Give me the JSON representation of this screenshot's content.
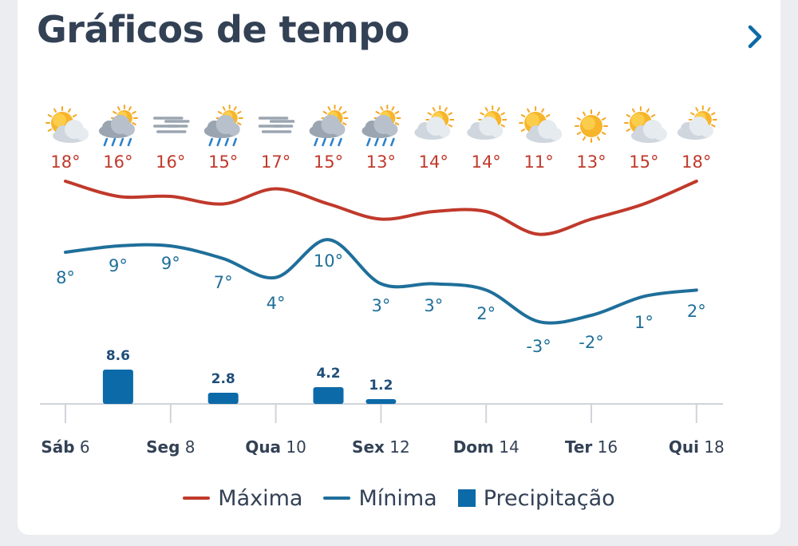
{
  "header": {
    "title": "Gráficos de tempo",
    "next_icon": "chevron-right-icon"
  },
  "colors": {
    "max": "#c0392b",
    "min": "#1f6f9a",
    "precip": "#0d6aa8",
    "text": "#334155",
    "axis": "#d0d4d9"
  },
  "days": [
    {
      "icon": "partly-sunny-icon",
      "max": "18°",
      "min": "8°"
    },
    {
      "icon": "sun-cloud-rain-icon",
      "max": "16°",
      "min": "9°"
    },
    {
      "icon": "fog-icon",
      "max": "16°",
      "min": "9°"
    },
    {
      "icon": "sun-cloud-rain-icon",
      "max": "15°",
      "min": "7°"
    },
    {
      "icon": "fog-icon",
      "max": "17°",
      "min": "4°"
    },
    {
      "icon": "sun-cloud-rain-icon",
      "max": "15°",
      "min": "10°"
    },
    {
      "icon": "sun-cloud-rain-icon",
      "max": "13°",
      "min": "3°"
    },
    {
      "icon": "partly-cloudy-icon",
      "max": "14°",
      "min": "3°"
    },
    {
      "icon": "partly-cloudy-icon",
      "max": "14°",
      "min": "2°"
    },
    {
      "icon": "partly-sunny-icon",
      "max": "11°",
      "min": "-3°"
    },
    {
      "icon": "sun-icon",
      "max": "13°",
      "min": "-2°"
    },
    {
      "icon": "partly-sunny-icon",
      "max": "15°",
      "min": "1°"
    },
    {
      "icon": "partly-cloudy-icon",
      "max": "18°",
      "min": "2°"
    }
  ],
  "chart_data": {
    "type": "line",
    "x_ticks": [
      {
        "index": 0,
        "dow": "Sáb",
        "day": "6"
      },
      {
        "index": 2,
        "dow": "Seg",
        "day": "8"
      },
      {
        "index": 4,
        "dow": "Qua",
        "day": "10"
      },
      {
        "index": 6,
        "dow": "Sex",
        "day": "12"
      },
      {
        "index": 8,
        "dow": "Dom",
        "day": "14"
      },
      {
        "index": 10,
        "dow": "Ter",
        "day": "16"
      },
      {
        "index": 12,
        "dow": "Qui",
        "day": "18"
      }
    ],
    "series": [
      {
        "name": "Máxima",
        "values": [
          18,
          16,
          16,
          15,
          17,
          15,
          13,
          14,
          14,
          11,
          13,
          15,
          18
        ]
      },
      {
        "name": "Mínima",
        "values": [
          8,
          9,
          9,
          7,
          4,
          10,
          3,
          3,
          2,
          -3,
          -2,
          1,
          2
        ]
      }
    ],
    "precipitation": {
      "name": "Precipitação",
      "bars": [
        {
          "index": 1,
          "value": 8.6,
          "label": "8.6"
        },
        {
          "index": 3,
          "value": 2.8,
          "label": "2.8"
        },
        {
          "index": 5,
          "value": 4.2,
          "label": "4.2"
        },
        {
          "index": 6,
          "value": 1.2,
          "label": "1.2"
        }
      ]
    }
  },
  "legend": {
    "max_label": "Máxima",
    "min_label": "Mínima",
    "precip_label": "Precipitação"
  }
}
